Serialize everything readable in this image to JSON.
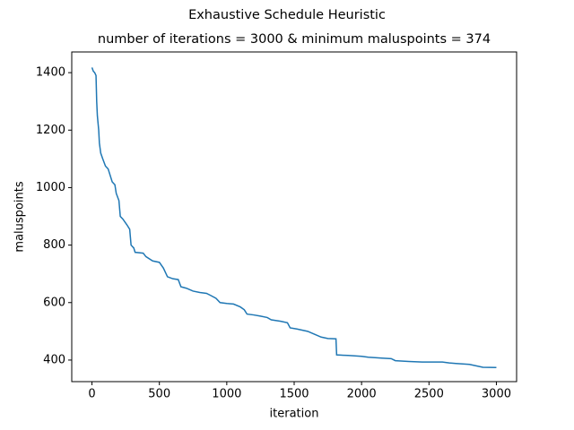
{
  "chart_data": {
    "type": "line",
    "suptitle": "Exhaustive Schedule Heuristic",
    "title": "number of iterations = 3000 & minimum maluspoints = 374",
    "x_label": "iteration",
    "y_label": "maluspoints",
    "x": [
      0,
      10,
      20,
      30,
      35,
      40,
      50,
      55,
      65,
      80,
      100,
      120,
      150,
      170,
      180,
      200,
      210,
      230,
      260,
      280,
      290,
      310,
      320,
      380,
      400,
      450,
      500,
      530,
      560,
      600,
      640,
      660,
      700,
      750,
      800,
      850,
      880,
      920,
      950,
      1000,
      1050,
      1100,
      1130,
      1150,
      1200,
      1250,
      1300,
      1330,
      1400,
      1450,
      1470,
      1520,
      1600,
      1650,
      1700,
      1750,
      1810,
      1815,
      1900,
      2000,
      2050,
      2150,
      2220,
      2250,
      2350,
      2450,
      2600,
      2650,
      2700,
      2800,
      2850,
      2900,
      3000
    ],
    "series": [
      {
        "name": "maluspoints",
        "color": "#1f77b4",
        "values": [
          1418,
          1405,
          1400,
          1390,
          1300,
          1250,
          1200,
          1155,
          1120,
          1100,
          1075,
          1065,
          1020,
          1010,
          980,
          955,
          900,
          890,
          870,
          855,
          800,
          790,
          775,
          772,
          760,
          745,
          740,
          720,
          690,
          683,
          680,
          655,
          650,
          640,
          635,
          632,
          625,
          615,
          600,
          597,
          595,
          585,
          575,
          560,
          557,
          553,
          548,
          540,
          535,
          530,
          512,
          508,
          500,
          490,
          480,
          475,
          474,
          418,
          416,
          413,
          410,
          407,
          405,
          398,
          395,
          393,
          393,
          390,
          388,
          385,
          380,
          375,
          374
        ]
      }
    ],
    "xlim": [
      -150,
      3150
    ],
    "ylim": [
      325,
      1472
    ],
    "xticks": [
      0,
      500,
      1000,
      1500,
      2000,
      2500,
      3000
    ],
    "yticks": [
      400,
      600,
      800,
      1000,
      1200,
      1400
    ],
    "grid": false
  }
}
